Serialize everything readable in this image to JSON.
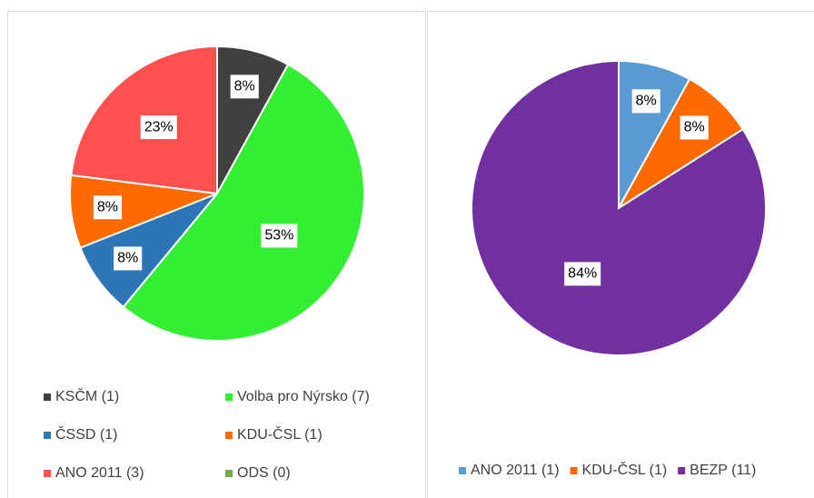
{
  "chart_data": [
    {
      "type": "pie",
      "categories": [
        "KSČM (1)",
        "Volba pro Nýrsko (7)",
        "ČSSD (1)",
        "KDU-ČSL (1)",
        "ANO 2011 (3)",
        "ODS (0)"
      ],
      "values": [
        8,
        53,
        8,
        8,
        23,
        0
      ],
      "value_labels": [
        "8%",
        "53%",
        "8%",
        "8%",
        "23%",
        null
      ],
      "colors": [
        "#404040",
        "#33ee33",
        "#2e75b6",
        "#ff6a00",
        "#ff5050",
        "#70ad47"
      ]
    },
    {
      "type": "pie",
      "categories": [
        "ANO 2011 (1)",
        "KDU-ČSL (1)",
        "BEZP (11)"
      ],
      "values": [
        8,
        8,
        84
      ],
      "value_labels": [
        "8%",
        "8%",
        "84%"
      ],
      "colors": [
        "#5b9bd5",
        "#ff6a00",
        "#7030a0"
      ]
    }
  ]
}
